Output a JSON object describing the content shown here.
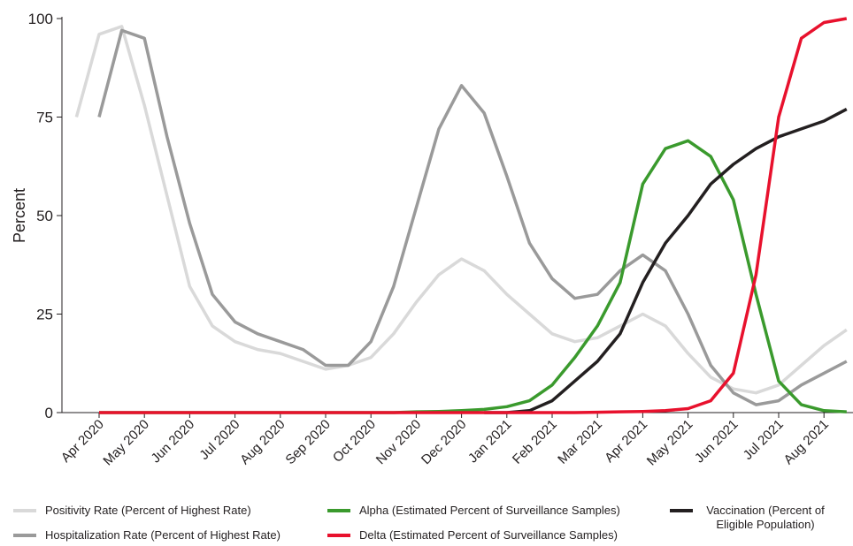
{
  "chart_data": {
    "type": "line",
    "y_label": "Percent",
    "categories": [
      null,
      "Apr 2020",
      null,
      "May 2020",
      null,
      "Jun 2020",
      null,
      "Jul 2020",
      null,
      "Aug 2020",
      null,
      "Sep 2020",
      null,
      "Oct 2020",
      null,
      "Nov 2020",
      null,
      "Dec 2020",
      null,
      "Jan 2021",
      null,
      "Feb 2021",
      null,
      "Mar 2021",
      null,
      "Apr 2021",
      null,
      "May 2021",
      null,
      "Jun 2021",
      null,
      "Jul 2021",
      null,
      "Aug 2021",
      null
    ],
    "series": [
      {
        "name": "Positivity Rate (Percent of Highest Rate)",
        "color": "#d9d9d9",
        "values": [
          75,
          96,
          98,
          78,
          55,
          32,
          22,
          18,
          16,
          15,
          13,
          11,
          12,
          14,
          20,
          28,
          35,
          39,
          36,
          30,
          25,
          20,
          18,
          19,
          22,
          25,
          22,
          15,
          9,
          6,
          5,
          7,
          12,
          17,
          21
        ]
      },
      {
        "name": "Hospitalization Rate (Percent of Highest Rate)",
        "color": "#9a9a9a",
        "values": [
          null,
          75,
          97,
          95,
          70,
          48,
          30,
          23,
          20,
          18,
          16,
          12,
          12,
          18,
          32,
          52,
          72,
          83,
          76,
          60,
          43,
          34,
          29,
          30,
          36,
          40,
          36,
          25,
          12,
          5,
          2,
          3,
          7,
          10,
          13
        ]
      },
      {
        "name": "Alpha (Estimated Percent of Surveillance Samples)",
        "color": "#3a9a2d",
        "values": [
          null,
          0,
          0,
          0,
          0,
          0,
          0,
          0,
          0,
          0,
          0,
          0,
          0,
          0,
          0,
          0.2,
          0.3,
          0.5,
          0.8,
          1.5,
          3,
          7,
          14,
          22,
          33,
          58,
          67,
          69,
          65,
          54,
          30,
          8,
          2,
          0.5,
          0.2
        ]
      },
      {
        "name": "Vaccination (Percent of Eligible Population)",
        "color": "#231f20",
        "values": [
          null,
          null,
          null,
          null,
          null,
          null,
          null,
          null,
          null,
          null,
          null,
          null,
          null,
          null,
          null,
          null,
          null,
          null,
          0,
          0,
          0.5,
          3,
          8,
          13,
          20,
          33,
          43,
          50,
          58,
          63,
          67,
          70,
          72,
          74,
          77
        ]
      },
      {
        "name": "Delta (Estimated Percent of Surveillance Samples)",
        "color": "#e8112d",
        "values": [
          null,
          0,
          0,
          0,
          0,
          0,
          0,
          0,
          0,
          0,
          0,
          0,
          0,
          0,
          0,
          0,
          0,
          0,
          0,
          0,
          0,
          0,
          0,
          0.1,
          0.2,
          0.3,
          0.5,
          1,
          3,
          10,
          35,
          75,
          95,
          99,
          100
        ]
      }
    ],
    "ylim": [
      0,
      100
    ],
    "yticks": [
      0,
      25,
      50,
      75,
      100
    ],
    "grid": false
  }
}
